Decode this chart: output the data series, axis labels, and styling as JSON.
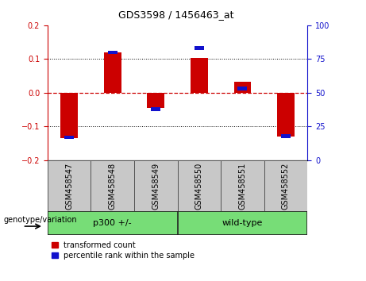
{
  "title": "GDS3598 / 1456463_at",
  "samples": [
    "GSM458547",
    "GSM458548",
    "GSM458549",
    "GSM458550",
    "GSM458551",
    "GSM458552"
  ],
  "red_values": [
    -0.135,
    0.12,
    -0.045,
    0.103,
    0.032,
    -0.13
  ],
  "blue_values_pct": [
    17,
    80,
    38,
    83,
    53,
    18
  ],
  "ylim_left": [
    -0.2,
    0.2
  ],
  "ylim_right": [
    0,
    100
  ],
  "yticks_left": [
    -0.2,
    -0.1,
    0.0,
    0.1,
    0.2
  ],
  "yticks_right": [
    0,
    25,
    50,
    75,
    100
  ],
  "group1_label": "p300 +/-",
  "group2_label": "wild-type",
  "group1_samples": [
    0,
    1,
    2
  ],
  "group2_samples": [
    3,
    4,
    5
  ],
  "legend_red": "transformed count",
  "legend_blue": "percentile rank within the sample",
  "genotype_label": "genotype/variation",
  "bar_width": 0.4,
  "red_color": "#CC0000",
  "blue_color": "#1111CC",
  "zero_line_color": "#CC0000",
  "grid_color": "black",
  "bg_xtick": "#C8C8C8",
  "bg_group": "#77DD77",
  "title_fontsize": 9,
  "tick_fontsize": 7,
  "label_fontsize": 7,
  "group_fontsize": 8,
  "legend_fontsize": 7
}
